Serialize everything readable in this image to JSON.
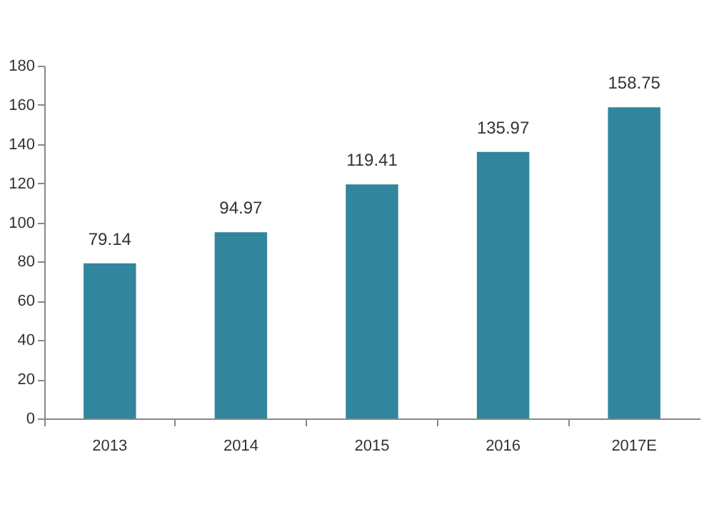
{
  "chart_data": {
    "type": "bar",
    "categories": [
      "2013",
      "2014",
      "2015",
      "2016",
      "2017E"
    ],
    "values": [
      79.14,
      94.97,
      119.41,
      135.97,
      158.75
    ],
    "color": "#31859c",
    "ylim": [
      0,
      180
    ],
    "yticks": [
      0,
      20,
      40,
      60,
      80,
      100,
      120,
      140,
      160,
      180
    ],
    "data_labels": true,
    "grid": false
  }
}
